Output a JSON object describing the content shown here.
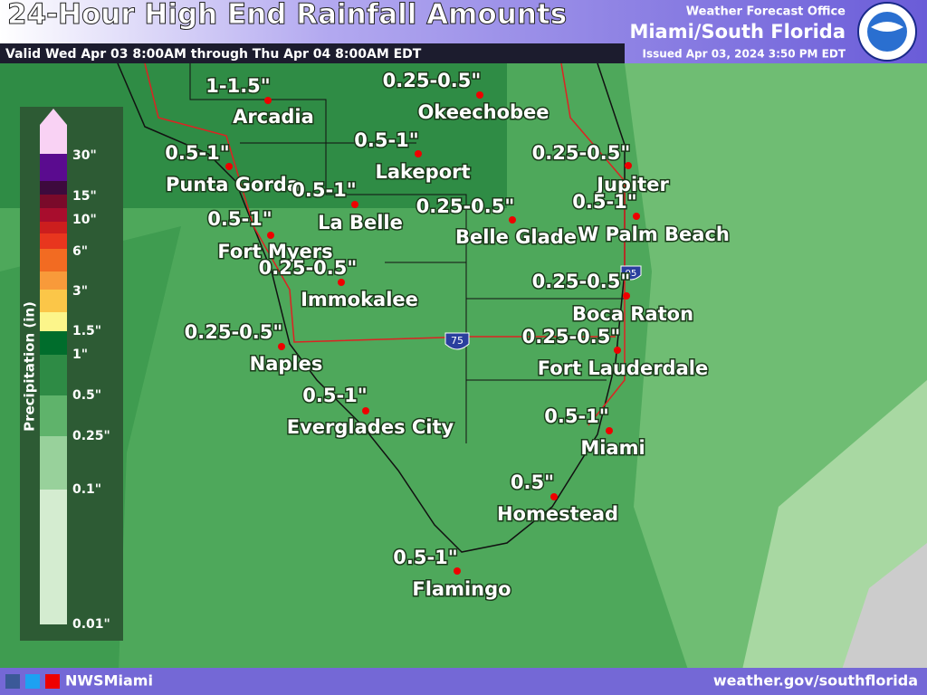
{
  "header": {
    "title": "24-Hour High End Rainfall Amounts",
    "valid": "Valid Wed Apr 03 8:00AM through Thu Apr 04 8:00AM EDT",
    "office_line": "Weather Forecast Office",
    "office": "Miami/South Florida",
    "issued": "Issued Apr 03, 2024 3:50 PM EDT"
  },
  "legend": {
    "label": "Precipitation (in)",
    "ticks": [
      "30\"",
      "15\"",
      "10\"",
      "6\"",
      "3\"",
      "1.5\"",
      "1\"",
      "0.5\"",
      "0.25\"",
      "0.1\"",
      "0.01\""
    ]
  },
  "shields": [
    "75",
    "95"
  ],
  "cities": [
    {
      "name": "Arcadia",
      "amount": "1-1.5\""
    },
    {
      "name": "Punta Gorda",
      "amount": "0.5-1\""
    },
    {
      "name": "Fort Myers",
      "amount": "0.5-1\""
    },
    {
      "name": "La Belle",
      "amount": "0.5-1\""
    },
    {
      "name": "Okeechobee",
      "amount": "0.25-0.5\""
    },
    {
      "name": "Lakeport",
      "amount": "0.5-1\""
    },
    {
      "name": "Belle Glade",
      "amount": "0.25-0.5\""
    },
    {
      "name": "Jupiter",
      "amount": "0.25-0.5\""
    },
    {
      "name": "W Palm Beach",
      "amount": "0.5-1\""
    },
    {
      "name": "Immokalee",
      "amount": "0.25-0.5\""
    },
    {
      "name": "Boca Raton",
      "amount": "0.25-0.5\""
    },
    {
      "name": "Naples",
      "amount": "0.25-0.5\""
    },
    {
      "name": "Fort Lauderdale",
      "amount": "0.25-0.5\""
    },
    {
      "name": "Everglades City",
      "amount": "0.5-1\""
    },
    {
      "name": "Miami",
      "amount": "0.5-1\""
    },
    {
      "name": "Homestead",
      "amount": "0.5\""
    },
    {
      "name": "Flamingo",
      "amount": "0.5-1\""
    }
  ],
  "footer": {
    "social": "NWSMiami",
    "url": "weather.gov/southflorida"
  }
}
